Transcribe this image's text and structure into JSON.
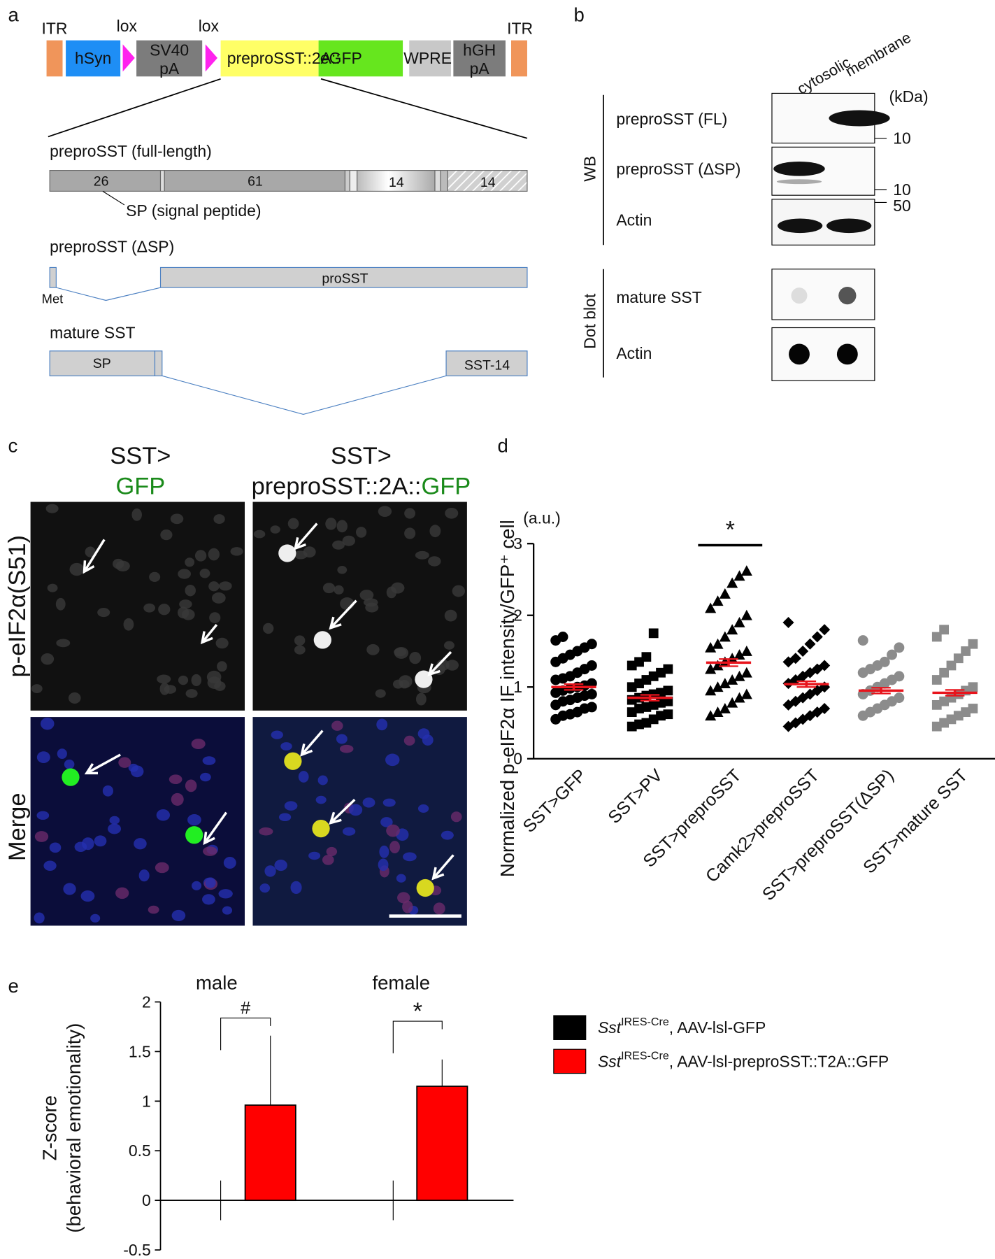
{
  "panel_labels": [
    "a",
    "b",
    "c",
    "d",
    "e"
  ],
  "construct": {
    "top_labels": [
      "ITR",
      "lox",
      "lox",
      "ITR"
    ],
    "boxes": [
      {
        "color": "#f0955a"
      },
      {
        "label": [
          "hSyn"
        ],
        "color": "#1e8ef5"
      },
      {
        "label": [
          "SV40",
          "pA"
        ],
        "color": "#7c7c7c"
      },
      {
        "label": [
          "preproSST::2A::"
        ],
        "color": "#ffff66"
      },
      {
        "label": [
          "eGFP"
        ],
        "color": "#66e61e",
        "text_color": "#2a8a1a"
      },
      {
        "label": [
          "WPRE"
        ],
        "color": "#c8c8c8"
      },
      {
        "label": [
          "hGH",
          "pA"
        ],
        "color": "#7c7c7c"
      },
      {
        "color": "#f0955a"
      }
    ]
  },
  "proteins": [
    {
      "title": "preproSST (full-length)",
      "segments": [
        26,
        61,
        14,
        14
      ],
      "note": "SP (signal peptide)"
    },
    {
      "title": "preproSST (ΔSP)",
      "segments": [
        "proSST"
      ],
      "note": "Met"
    },
    {
      "title": "mature SST",
      "segments": [
        "SP",
        "SST-14"
      ]
    }
  ],
  "blots": {
    "columns": [
      "cytosolic",
      "membrane"
    ],
    "unit": "(kDa)",
    "groups": [
      {
        "method": "WB",
        "rows": [
          "preproSST (FL)",
          "preproSST (ΔSP)",
          "Actin"
        ]
      },
      {
        "method": "Dot blot",
        "rows": [
          "mature SST",
          "Actin"
        ]
      }
    ],
    "markers": [
      10,
      10,
      50
    ]
  },
  "micrographs": {
    "columns": [
      {
        "line1": "SST>",
        "highlight": "GFP"
      },
      {
        "line1": "SST>",
        "prefix": "preproSST::2A::",
        "highlight": "GFP"
      }
    ],
    "highlight_color": "#1a8a1a",
    "rows": [
      "p-eIF2α(S51)",
      "Merge"
    ],
    "row_colors": [
      "#e8141c",
      "#111111"
    ]
  },
  "chart_data": [
    {
      "type": "dot",
      "ylabel": "Normalized p-eIF2α IF intensity/GFP⁺ cell",
      "unit": "(a.u.)",
      "categories": [
        "SST>GFP",
        "SST>PV",
        "SST>preproSST",
        "Camk2>preproSST",
        "SST>preproSST(ΔSP)",
        "SST>mature SST"
      ],
      "points": [
        [
          0.55,
          0.6,
          0.62,
          0.65,
          0.7,
          0.72,
          0.75,
          0.8,
          0.82,
          0.85,
          0.88,
          0.9,
          0.92,
          0.95,
          0.98,
          1.0,
          1.02,
          1.05,
          1.1,
          1.12,
          1.15,
          1.2,
          1.25,
          1.3,
          1.35,
          1.4,
          1.45,
          1.5,
          1.55,
          1.6,
          1.65,
          1.7
        ],
        [
          0.45,
          0.48,
          0.5,
          0.55,
          0.6,
          0.62,
          0.65,
          0.7,
          0.72,
          0.75,
          0.78,
          0.8,
          0.82,
          0.85,
          0.88,
          0.9,
          0.92,
          0.95,
          1.0,
          1.05,
          1.1,
          1.15,
          1.2,
          1.25,
          1.3,
          1.35,
          1.42,
          1.75
        ],
        [
          0.6,
          0.65,
          0.7,
          0.78,
          0.85,
          0.9,
          0.95,
          1.0,
          1.05,
          1.1,
          1.15,
          1.2,
          1.25,
          1.3,
          1.35,
          1.4,
          1.45,
          1.5,
          1.55,
          1.6,
          1.7,
          1.8,
          1.9,
          2.0,
          2.1,
          2.2,
          2.3,
          2.45,
          2.55,
          2.62
        ],
        [
          0.45,
          0.5,
          0.55,
          0.6,
          0.65,
          0.7,
          0.75,
          0.8,
          0.85,
          0.9,
          0.95,
          1.0,
          1.05,
          1.1,
          1.15,
          1.2,
          1.25,
          1.3,
          1.35,
          1.4,
          1.5,
          1.6,
          1.7,
          1.8,
          1.9
        ],
        [
          0.6,
          0.65,
          0.7,
          0.75,
          0.8,
          0.85,
          0.9,
          0.95,
          1.0,
          1.05,
          1.1,
          1.15,
          1.2,
          1.25,
          1.3,
          1.35,
          1.45,
          1.55,
          1.65
        ],
        [
          0.45,
          0.5,
          0.55,
          0.6,
          0.65,
          0.7,
          0.75,
          0.8,
          0.85,
          0.9,
          0.95,
          1.0,
          1.1,
          1.2,
          1.3,
          1.4,
          1.5,
          1.6,
          1.7,
          1.8
        ]
      ],
      "means": [
        1.0,
        0.85,
        1.34,
        1.04,
        0.95,
        0.92
      ],
      "sems": [
        0.04,
        0.04,
        0.05,
        0.04,
        0.04,
        0.04
      ],
      "colors": [
        "#000000",
        "#000000",
        "#000000",
        "#000000",
        "#8c8c8c",
        "#8c8c8c"
      ],
      "markers": [
        "circle",
        "square",
        "triangle",
        "diamond",
        "circle",
        "square"
      ],
      "mean_color": "#e8141c",
      "significance": [
        null,
        null,
        "*",
        null,
        null,
        null
      ],
      "ylim": [
        0,
        3
      ],
      "yticks": [
        0,
        1,
        2,
        3
      ]
    },
    {
      "type": "bar",
      "ylabel": [
        "Z-score",
        "(behavioral emotionality)"
      ],
      "categories": [
        "male",
        "female"
      ],
      "series": [
        {
          "name": [
            "Sst",
            "IRES-Cre",
            ", AAV-lsl-GFP"
          ],
          "color": "#000000",
          "values": [
            0,
            0
          ],
          "errors": [
            0.2,
            0.2
          ]
        },
        {
          "name": [
            "Sst",
            "IRES-Cre",
            ", AAV-lsl-preproSST::T2A::GFP"
          ],
          "color": "#ff0000",
          "values": [
            0.96,
            1.15
          ],
          "errors": [
            0.7,
            0.27
          ]
        }
      ],
      "significance": [
        "#",
        "*"
      ],
      "ylim": [
        -0.5,
        2
      ],
      "yticks": [
        -0.5,
        0,
        0.5,
        1,
        1.5,
        2
      ]
    }
  ]
}
